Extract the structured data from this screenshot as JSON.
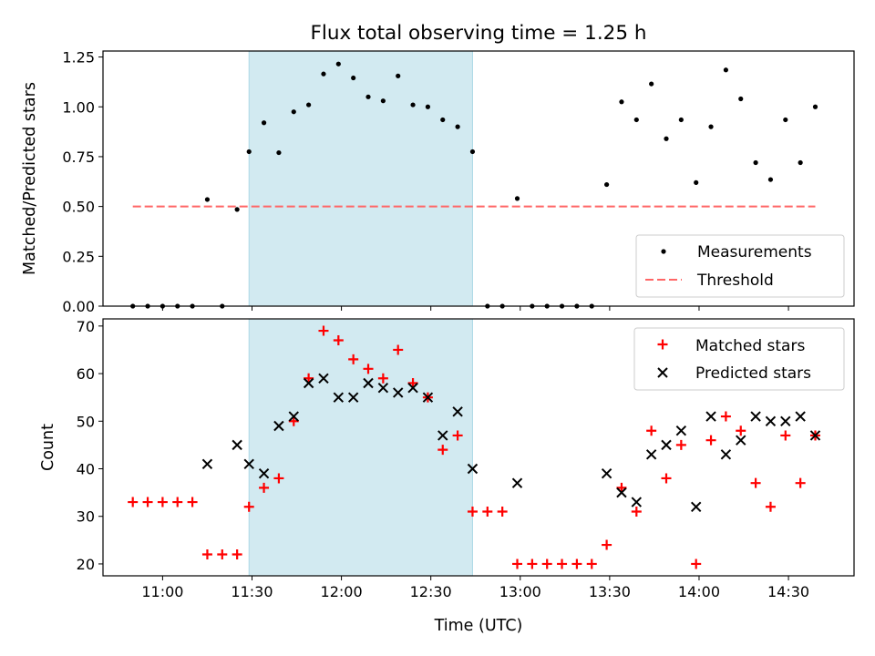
{
  "figure": {
    "title": "Flux total observing time = 1.25 h",
    "xlabel": "Time (UTC)"
  },
  "colors": {
    "shade": "#add8e6",
    "threshold": "#ff6666",
    "matched": "#ff0000",
    "predicted": "#000000",
    "measurement": "#000000"
  },
  "chart_data": [
    {
      "type": "scatter",
      "ylabel": "Matched/Predicted stars",
      "ylim": [
        0,
        1.28
      ],
      "yticks": [
        0.0,
        0.25,
        0.5,
        0.75,
        1.0,
        1.25
      ],
      "ytick_labels": [
        "0.00",
        "0.25",
        "0.50",
        "0.75",
        "1.00",
        "1.25"
      ],
      "xlim": [
        "10:40",
        "14:52"
      ],
      "legend_position": "lower-right",
      "shaded_span": [
        "11:29",
        "12:44"
      ],
      "series": [
        {
          "name": "Measurements",
          "x": [
            "10:50",
            "10:55",
            "11:00",
            "11:05",
            "11:10",
            "11:15",
            "11:20",
            "11:25",
            "11:29",
            "11:34",
            "11:39",
            "11:44",
            "11:49",
            "11:54",
            "11:59",
            "12:04",
            "12:09",
            "12:14",
            "12:19",
            "12:24",
            "12:29",
            "12:34",
            "12:39",
            "12:44",
            "12:49",
            "12:54",
            "12:59",
            "13:04",
            "13:09",
            "13:14",
            "13:19",
            "13:24",
            "13:29",
            "13:34",
            "13:39",
            "13:44",
            "13:49",
            "13:54",
            "13:59",
            "14:04",
            "14:09",
            "14:14",
            "14:19",
            "14:24",
            "14:29",
            "14:34",
            "14:39"
          ],
          "y": [
            0,
            0,
            0,
            0,
            0,
            0.535,
            0,
            0.485,
            0.775,
            0.92,
            0.77,
            0.975,
            1.01,
            1.165,
            1.215,
            1.145,
            1.05,
            1.03,
            1.155,
            1.01,
            1.0,
            0.935,
            0.9,
            0.775,
            0,
            0,
            0.54,
            0,
            0,
            0,
            0,
            0,
            0.61,
            1.025,
            0.935,
            1.115,
            0.84,
            0.935,
            0.62,
            0.9,
            1.185,
            1.04,
            0.72,
            0.635,
            0.935,
            0.72,
            1.0
          ]
        },
        {
          "name": "Threshold",
          "x": [
            "10:50",
            "14:39"
          ],
          "y": [
            0.5,
            0.5
          ]
        }
      ]
    },
    {
      "type": "scatter",
      "ylabel": "Count",
      "ylim": [
        17.5,
        71.5
      ],
      "yticks": [
        20,
        30,
        40,
        50,
        60,
        70
      ],
      "ytick_labels": [
        "20",
        "30",
        "40",
        "50",
        "60",
        "70"
      ],
      "xlim": [
        "10:40",
        "14:52"
      ],
      "xticks": [
        "11:00",
        "11:30",
        "12:00",
        "12:30",
        "13:00",
        "13:30",
        "14:00",
        "14:30"
      ],
      "xtick_labels": [
        "11:00",
        "11:30",
        "12:00",
        "12:30",
        "13:00",
        "13:30",
        "14:00",
        "14:30"
      ],
      "legend_position": "upper-right",
      "shaded_span": [
        "11:29",
        "12:44"
      ],
      "series": [
        {
          "name": "Matched stars",
          "x": [
            "10:50",
            "10:55",
            "11:00",
            "11:05",
            "11:10",
            "11:15",
            "11:20",
            "11:25",
            "11:29",
            "11:34",
            "11:39",
            "11:44",
            "11:49",
            "11:54",
            "11:59",
            "12:04",
            "12:09",
            "12:14",
            "12:19",
            "12:24",
            "12:29",
            "12:34",
            "12:39",
            "12:44",
            "12:49",
            "12:54",
            "12:59",
            "13:04",
            "13:09",
            "13:14",
            "13:19",
            "13:24",
            "13:29",
            "13:34",
            "13:39",
            "13:44",
            "13:49",
            "13:54",
            "13:59",
            "14:04",
            "14:09",
            "14:14",
            "14:19",
            "14:24",
            "14:29",
            "14:34",
            "14:39"
          ],
          "y": [
            33,
            33,
            33,
            33,
            33,
            22,
            22,
            22,
            32,
            36,
            38,
            50,
            59,
            69,
            67,
            63,
            61,
            59,
            65,
            58,
            55,
            44,
            47,
            31,
            31,
            31,
            20,
            20,
            20,
            20,
            20,
            20,
            24,
            36,
            31,
            48,
            38,
            45,
            20,
            46,
            51,
            48,
            37,
            32,
            47,
            37,
            47
          ]
        },
        {
          "name": "Predicted stars",
          "x": [
            "11:15",
            "11:25",
            "11:29",
            "11:34",
            "11:39",
            "11:44",
            "11:49",
            "11:54",
            "11:59",
            "12:04",
            "12:09",
            "12:14",
            "12:19",
            "12:24",
            "12:29",
            "12:34",
            "12:39",
            "12:44",
            "12:59",
            "13:29",
            "13:34",
            "13:39",
            "13:44",
            "13:49",
            "13:54",
            "13:59",
            "14:04",
            "14:09",
            "14:14",
            "14:19",
            "14:24",
            "14:29",
            "14:34",
            "14:39"
          ],
          "y": [
            41,
            45,
            41,
            39,
            49,
            51,
            58,
            59,
            55,
            55,
            58,
            57,
            56,
            57,
            55,
            47,
            52,
            40,
            37,
            39,
            35,
            33,
            43,
            45,
            48,
            32,
            51,
            43,
            46,
            51,
            50,
            50,
            51,
            47
          ]
        }
      ]
    }
  ]
}
